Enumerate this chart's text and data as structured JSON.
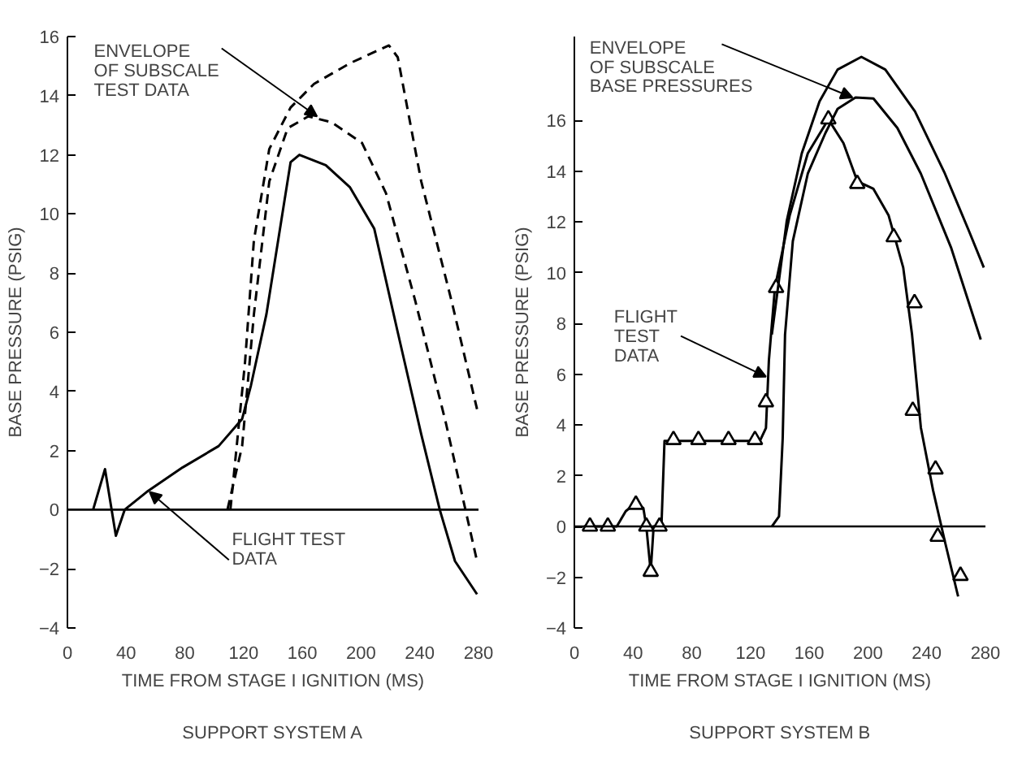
{
  "chart_data": [
    {
      "type": "line",
      "title": "SUPPORT SYSTEM A",
      "xlabel": "TIME FROM STAGE I IGNITION (MS)",
      "ylabel": "BASE PRESSURE (PSIG)",
      "xlim": [
        0,
        280
      ],
      "ylim": [
        -4,
        16
      ],
      "xticks": [
        0,
        40,
        80,
        120,
        160,
        200,
        240,
        280
      ],
      "yticks": [
        -4,
        -2,
        0,
        2,
        4,
        6,
        8,
        10,
        12,
        14,
        16
      ],
      "grid": false,
      "ref_lines": [
        {
          "axis": "y",
          "value": 0,
          "color": "#000000",
          "line_style": "solid"
        }
      ],
      "series": [
        {
          "color": "#000000",
          "line_style": "solid",
          "x": [
            17.5,
            25.6,
            33,
            39,
            54,
            78.5,
            103,
            119,
            125,
            135.5,
            152,
            158,
            176,
            192.5,
            209,
            225,
            241,
            253.6,
            264,
            279
          ],
          "values": [
            0,
            1.37,
            -0.88,
            0,
            0.6,
            1.43,
            2.15,
            3.07,
            4.2,
            6.6,
            11.75,
            12.0,
            11.65,
            10.9,
            9.5,
            6.0,
            2.55,
            0,
            -1.74,
            -2.86
          ]
        },
        {
          "color": "#000000",
          "line_style": "dashed",
          "x": [
            109,
            119,
            127,
            137.5,
            150,
            164,
            180,
            200.7,
            217,
            237,
            257.6,
            279
          ],
          "values": [
            0,
            2.15,
            6.6,
            11.1,
            12.9,
            13.3,
            13.1,
            12.4,
            10.7,
            7.05,
            2.97,
            -1.74
          ]
        },
        {
          "color": "#000000",
          "line_style": "dashed",
          "x": [
            111,
            121,
            127,
            137.5,
            152,
            168,
            192.5,
            219,
            225,
            241,
            261.7,
            279
          ],
          "values": [
            0,
            5.0,
            9.1,
            12.2,
            13.6,
            14.4,
            15.1,
            15.7,
            15.3,
            11.1,
            7.05,
            3.4
          ]
        }
      ],
      "annotations": [
        {
          "text": "ENVELOPE\nOF SUBSCALE\nTEST DATA",
          "x": 170,
          "y": 13.3
        },
        {
          "text": "FLIGHT TEST\nDATA",
          "x": 56,
          "y": 0.6
        }
      ]
    },
    {
      "type": "line",
      "title": "SUPPORT SYSTEM B",
      "xlabel": "TIME FROM STAGE I IGNITION (MS)",
      "ylabel": "BASE PRESSURE (PSIG)",
      "xlim": [
        0,
        280
      ],
      "ylim": [
        -4,
        19.3
      ],
      "xticks": [
        0,
        40,
        80,
        120,
        160,
        200,
        240,
        280
      ],
      "yticks": [
        -4,
        -2,
        0,
        2,
        4,
        6,
        8,
        10,
        12,
        14,
        16
      ],
      "grid": false,
      "ref_lines": [
        {
          "axis": "y",
          "value": 0,
          "color": "#000000",
          "line_style": "solid"
        }
      ],
      "series": [
        {
          "color": "#000000",
          "line_style": "solid",
          "x": [
            6.5,
            28.9,
            35,
            41.9,
            47,
            49,
            52,
            54,
            59.3,
            61.4,
            126.4,
            130.5,
            132.5,
            136.6,
            146.7,
            159,
            173,
            183.3,
            192.7,
            203.7,
            214,
            224,
            230,
            236,
            244.3,
            252.4,
            261.4
          ],
          "values": [
            0,
            0,
            0.6,
            0.92,
            0.72,
            0,
            -1.78,
            0,
            0,
            3.37,
            3.37,
            3.88,
            6.54,
            9.4,
            12.26,
            14.7,
            16.04,
            15.1,
            13.6,
            13.3,
            12.26,
            10.2,
            7.56,
            3.9,
            1.43,
            -0.6,
            -2.76
          ]
        },
        {
          "type": "scatter",
          "marker": "triangle",
          "color": "#000000",
          "x": [
            10.6,
            22.8,
            41.9,
            49,
            52,
            58,
            67.5,
            84.5,
            105,
            123,
            130.5,
            137.4,
            173,
            192.7,
            217.5,
            231.7,
            230.5,
            246,
            247.5,
            263
          ],
          "values": [
            0,
            0,
            0.86,
            0,
            -1.78,
            0,
            3.41,
            3.41,
            3.41,
            3.41,
            4.9,
            9.4,
            16.04,
            13.5,
            11.4,
            8.8,
            4.56,
            2.25,
            -0.4,
            -1.94
          ]
        },
        {
          "color": "#000000",
          "line_style": "solid",
          "x": [
            134.5,
            144.7,
            154.9,
            167,
            179.3,
            195.5,
            211.8,
            232,
            252.4,
            268.7,
            278.9
          ],
          "values": [
            7.56,
            12.05,
            14.7,
            16.75,
            18.0,
            18.5,
            18.0,
            16.35,
            13.9,
            11.65,
            10.2
          ]
        },
        {
          "color": "#000000",
          "line_style": "solid",
          "x": [
            134.5,
            139.4,
            141.9,
            143.5,
            148.8,
            159,
            171,
            179.3,
            191.5,
            203.7,
            220,
            236,
            256.5,
            276.8
          ],
          "values": [
            0,
            0.4,
            3.47,
            7.56,
            11.24,
            13.9,
            15.5,
            16.45,
            16.9,
            16.86,
            15.7,
            13.9,
            11.0,
            7.36
          ]
        }
      ],
      "annotations": [
        {
          "text": "ENVELOPE\nOF SUBSCALE\nBASE PRESSURES",
          "x": 189.4,
          "y": 16.9
        },
        {
          "text": "FLIGHT\nTEST\nDATA",
          "x": 130.5,
          "y": 5.9
        }
      ]
    }
  ]
}
